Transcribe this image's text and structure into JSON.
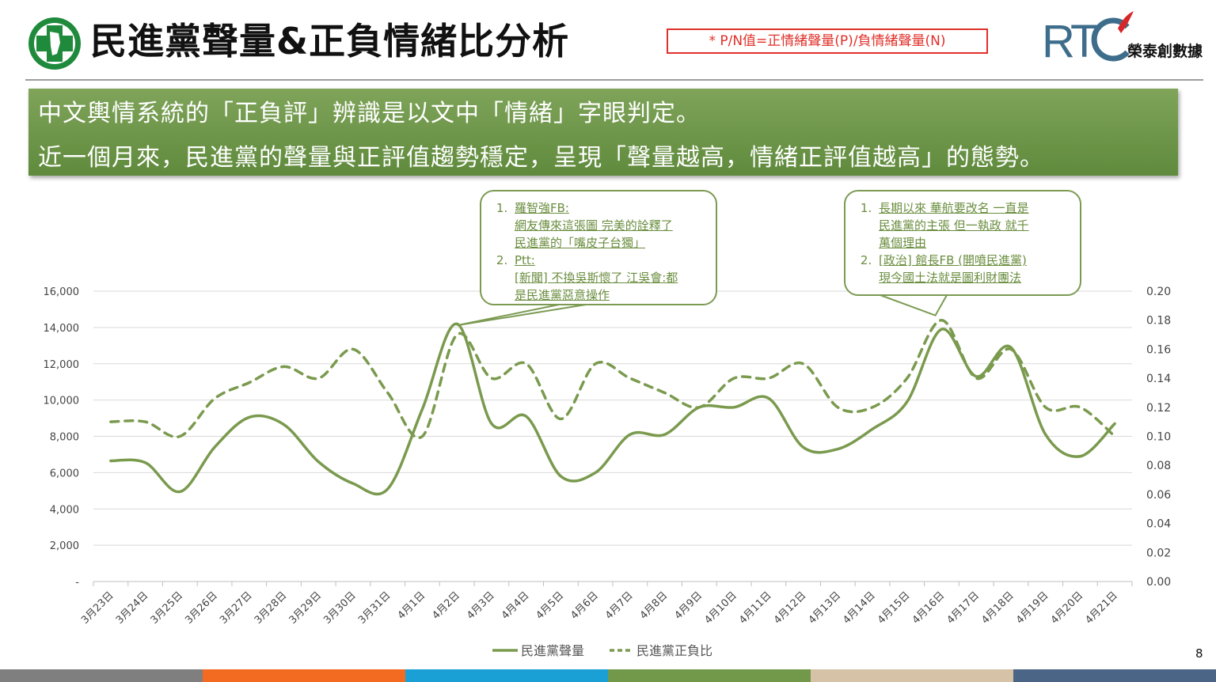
{
  "header": {
    "title": "民進黨聲量&正負情緒比分析",
    "pn_note": "* P/N值=正情緒聲量(P)/負情緒聲量(N)",
    "brand": "榮泰創數據"
  },
  "summary": {
    "line1": "中文輿情系統的「正負評」辨識是以文中「情緒」字眼判定。",
    "line2": "近一個月來，民進黨的聲量與正評值趨勢穩定，呈現「聲量越高，情緒正評值越高」的態勢。"
  },
  "callouts": [
    {
      "items": [
        {
          "num": "1.",
          "lines": [
            "羅智強FB:",
            "網友傳來這張圖 完美的詮釋了",
            "民進黨的「嘴皮子台獨」"
          ]
        },
        {
          "num": "2.",
          "lines": [
            "Ptt:",
            "[新聞] 不換吳斯懷了 江吳會:都",
            "是民進黨惡意操作"
          ]
        }
      ]
    },
    {
      "items": [
        {
          "num": "1.",
          "lines": [
            "長期以來 華航要改名 一直是",
            "民進黨的主張 但一執政 就千",
            "萬個理由"
          ]
        },
        {
          "num": "2.",
          "lines": [
            "[政治] 館長FB (開噴民進黨)",
            "現今國土法就是圖利財團法"
          ]
        }
      ]
    }
  ],
  "chart_data": {
    "type": "line",
    "categories": [
      "3月23日",
      "3月24日",
      "3月25日",
      "3月26日",
      "3月27日",
      "3月28日",
      "3月29日",
      "3月30日",
      "3月31日",
      "4月1日",
      "4月2日",
      "4月3日",
      "4月4日",
      "4月5日",
      "4月6日",
      "4月7日",
      "4月8日",
      "4月9日",
      "4月10日",
      "4月11日",
      "4月12日",
      "4月13日",
      "4月14日",
      "4月15日",
      "4月16日",
      "4月17日",
      "4月18日",
      "4月19日",
      "4月20日",
      "4月21日"
    ],
    "series": [
      {
        "name": "民進黨聲量",
        "axis": "left",
        "style": "solid",
        "values": [
          6650,
          6550,
          4950,
          7400,
          9050,
          8650,
          6600,
          5400,
          5100,
          9500,
          14200,
          8700,
          9100,
          5800,
          6000,
          8100,
          8100,
          9600,
          9600,
          10100,
          7400,
          7300,
          8400,
          9900,
          13900,
          11300,
          12900,
          8100,
          6900,
          8700
        ]
      },
      {
        "name": "民進黨正負比",
        "axis": "right",
        "style": "dashed",
        "values": [
          0.11,
          0.11,
          0.1,
          0.126,
          0.137,
          0.148,
          0.14,
          0.16,
          0.13,
          0.1,
          0.17,
          0.14,
          0.15,
          0.112,
          0.15,
          0.14,
          0.13,
          0.12,
          0.14,
          0.14,
          0.15,
          0.12,
          0.12,
          0.14,
          0.18,
          0.14,
          0.16,
          0.12,
          0.12,
          0.1
        ]
      }
    ],
    "y_left": {
      "min": 0,
      "max": 16000,
      "ticks": [
        "-",
        "2,000",
        "4,000",
        "6,000",
        "8,000",
        "10,000",
        "12,000",
        "14,000",
        "16,000"
      ]
    },
    "y_right": {
      "min": 0,
      "max": 0.2,
      "ticks": [
        "0.00",
        "0.02",
        "0.04",
        "0.06",
        "0.08",
        "0.10",
        "0.12",
        "0.14",
        "0.16",
        "0.18",
        "0.20"
      ]
    },
    "legend": [
      "民進黨聲量",
      "民進黨正負比"
    ],
    "legend_position": "bottom",
    "grid": true
  },
  "page_number": "8",
  "colors": {
    "line": "#7a9a4e",
    "grid": "#d9d9d9",
    "footer": [
      "#7f7f7f",
      "#f26b21",
      "#1aa0d4",
      "#72994a",
      "#d6c2a6",
      "#4a6585"
    ]
  }
}
